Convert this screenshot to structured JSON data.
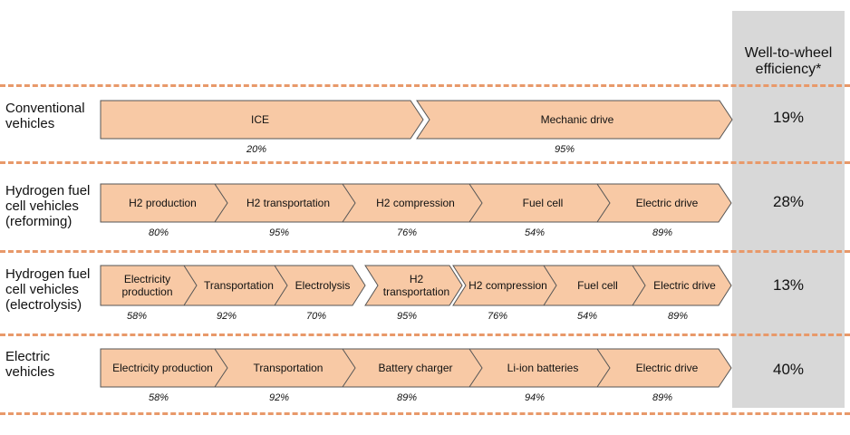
{
  "header": {
    "efficiency_title": "Well-to-wheel efficiency*"
  },
  "rows": [
    {
      "label": "Conventional vehicles",
      "efficiency": "19%",
      "steps": [
        {
          "name": "ICE",
          "pct": "20%"
        },
        {
          "name": "Mechanic drive",
          "pct": "95%"
        }
      ]
    },
    {
      "label": "Hydrogen fuel cell vehicles (reforming)",
      "efficiency": "28%",
      "steps": [
        {
          "name": "H2 production",
          "pct": "80%"
        },
        {
          "name": "H2 transportation",
          "pct": "95%"
        },
        {
          "name": "H2 compression",
          "pct": "76%"
        },
        {
          "name": "Fuel cell",
          "pct": "54%"
        },
        {
          "name": "Electric drive",
          "pct": "89%"
        }
      ]
    },
    {
      "label": "Hydrogen fuel cell vehicles (electrolysis)",
      "efficiency": "13%",
      "steps": [
        {
          "name": "Electricity production",
          "pct": "58%"
        },
        {
          "name": "Transportation",
          "pct": "92%"
        },
        {
          "name": "Electrolysis",
          "pct": "70%"
        },
        {
          "name": "H2 transportation",
          "pct": "95%"
        },
        {
          "name": "H2 compression",
          "pct": "76%"
        },
        {
          "name": "Fuel cell",
          "pct": "54%"
        },
        {
          "name": "Electric drive",
          "pct": "89%"
        }
      ]
    },
    {
      "label": "Electric vehicles",
      "efficiency": "40%",
      "steps": [
        {
          "name": "Electricity production",
          "pct": "58%"
        },
        {
          "name": "Transportation",
          "pct": "92%"
        },
        {
          "name": "Battery charger",
          "pct": "89%"
        },
        {
          "name": "Li-ion batteries",
          "pct": "94%"
        },
        {
          "name": "Electric drive",
          "pct": "89%"
        }
      ]
    }
  ],
  "colors": {
    "chevron_fill": "#f8c9a5",
    "chevron_stroke": "#555555",
    "divider": "#e8996a",
    "efficiency_column": "#d8d8d8"
  }
}
